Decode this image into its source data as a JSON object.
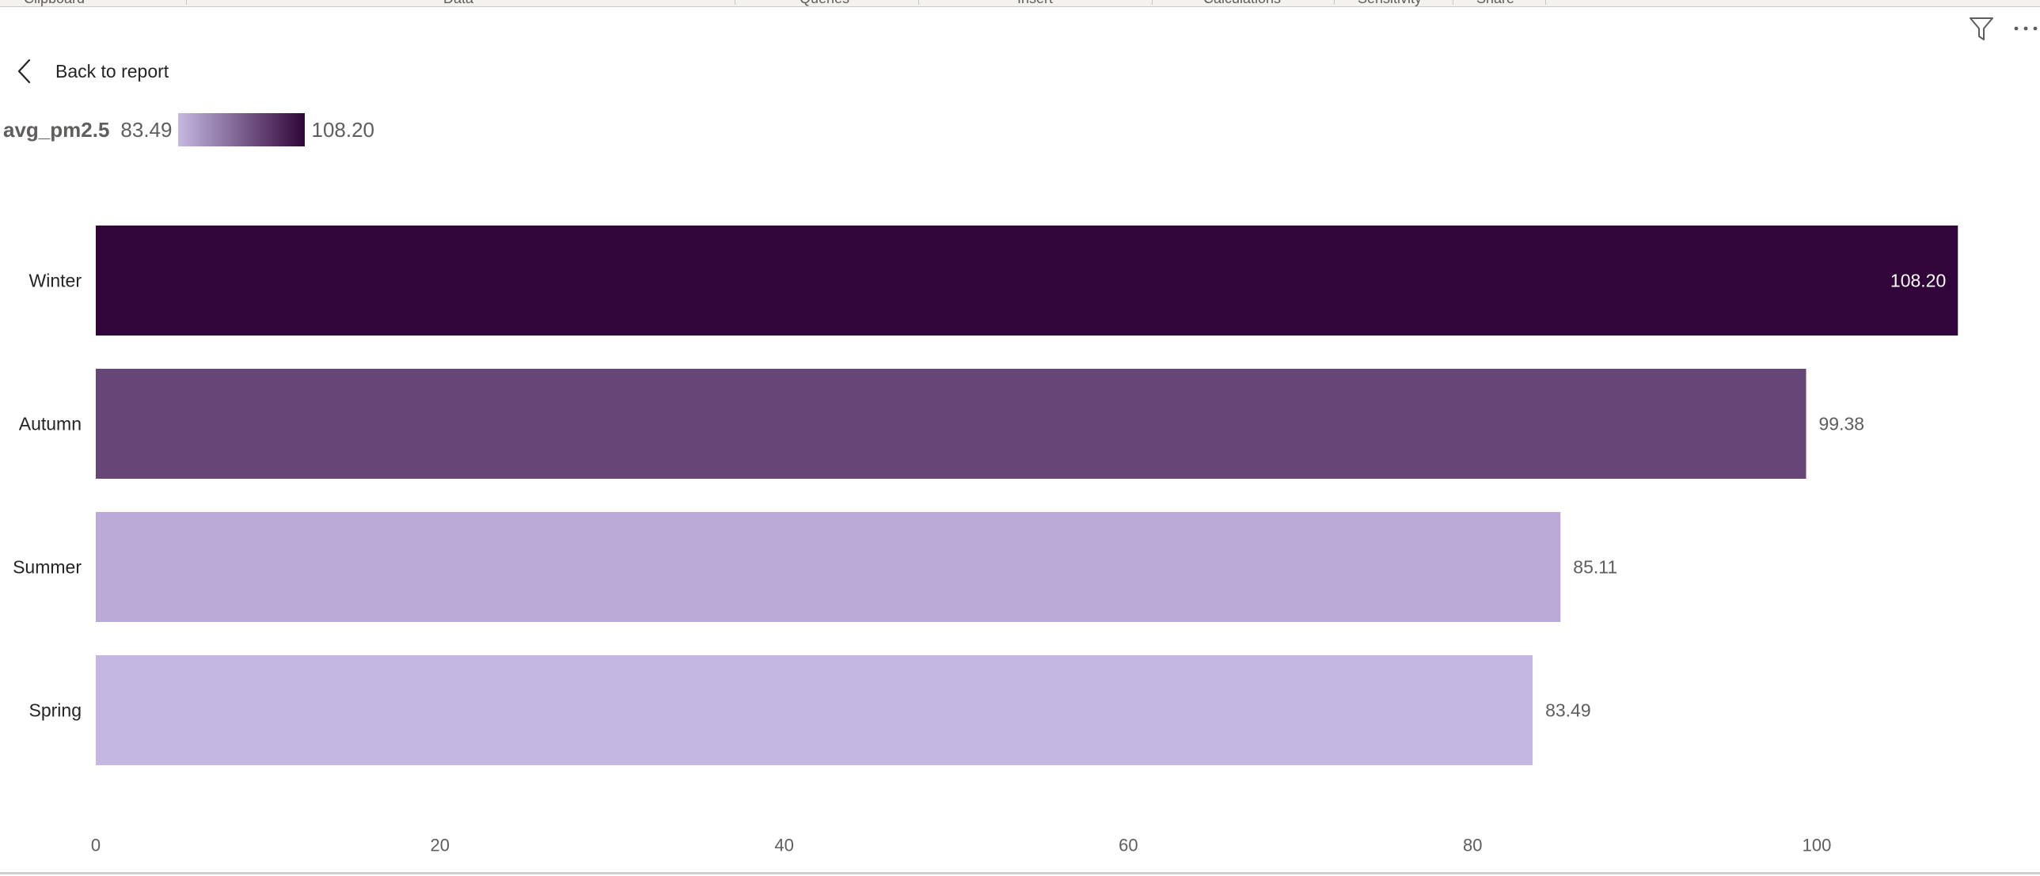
{
  "ribbon": {
    "groups": [
      "Clipboard",
      "Data",
      "Queries",
      "Insert",
      "Calculations",
      "Sensitivity",
      "Share"
    ]
  },
  "header": {
    "back_label": "Back to report",
    "back_icon": "chevron-left-icon",
    "filter_icon": "filter-icon",
    "more_icon": "more-options-icon"
  },
  "legend": {
    "field": "avg_pm2.5",
    "min_label": "83.49",
    "max_label": "108.20",
    "gradient_from": "#c4b8e2",
    "gradient_to": "#310538"
  },
  "chart_data": {
    "type": "bar",
    "orientation": "horizontal",
    "title": "",
    "xlabel": "",
    "ylabel": "",
    "categories": [
      "Winter",
      "Autumn",
      "Summer",
      "Spring"
    ],
    "values": [
      108.2,
      99.38,
      85.11,
      83.49
    ],
    "value_labels": [
      "108.20",
      "99.38",
      "85.11",
      "83.49"
    ],
    "colors": [
      "#31053a",
      "#654677",
      "#bbaad7",
      "#c4b8e2"
    ],
    "xlim": [
      0,
      110
    ],
    "x_ticks": [
      0,
      20,
      40,
      60,
      80,
      100
    ],
    "grid": false,
    "legend": "top-left color gradient"
  }
}
